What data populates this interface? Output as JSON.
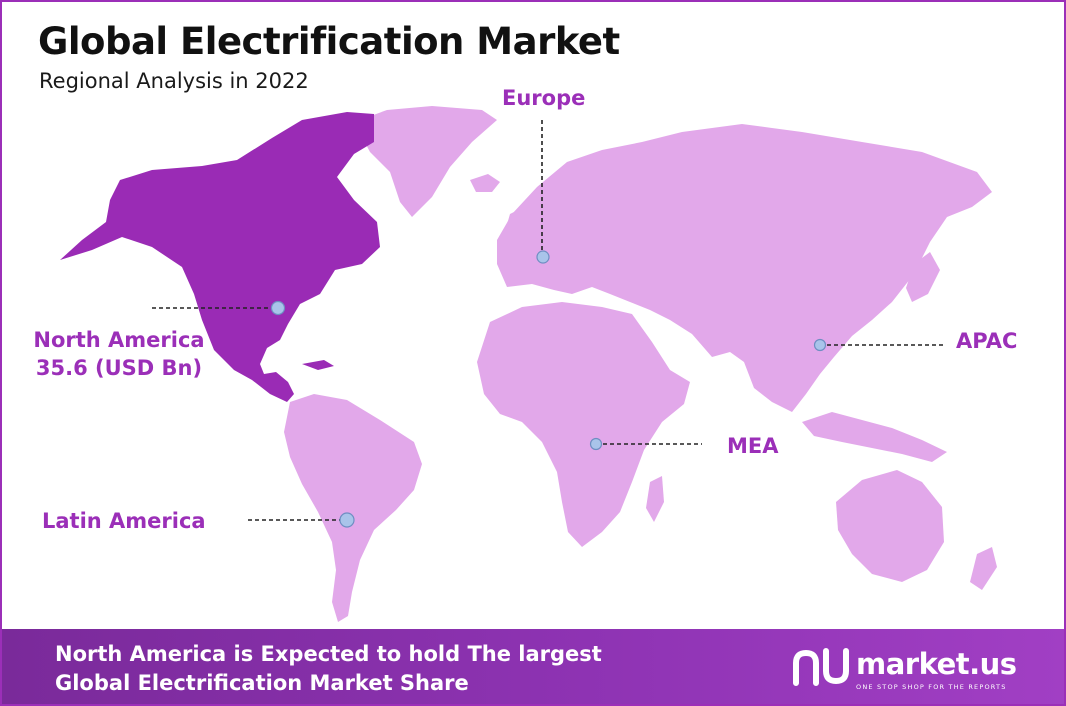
{
  "header": {
    "title": "Global Electrification Market",
    "subtitle": "Regional Analysis in 2022"
  },
  "regions": [
    {
      "id": "north-america",
      "name": "North America",
      "value": "35.6 (USD Bn)",
      "highlighted": true
    },
    {
      "id": "europe",
      "name": "Europe",
      "highlighted": false
    },
    {
      "id": "apac",
      "name": "APAC",
      "highlighted": false
    },
    {
      "id": "mea",
      "name": "MEA",
      "highlighted": false
    },
    {
      "id": "latin-america",
      "name": "Latin America",
      "highlighted": false
    }
  ],
  "footer": {
    "line1": "North America is Expected to hold The largest",
    "line2": "Global Electrification Market Share"
  },
  "brand": {
    "name": "market.us",
    "tagline": "ONE STOP SHOP FOR THE REPORTS"
  },
  "colors": {
    "accent": "#9b2fb8",
    "highlight_region": "#9a2bb5",
    "other_regions": "#e2a8ea",
    "marker": "#a9c4ea"
  }
}
